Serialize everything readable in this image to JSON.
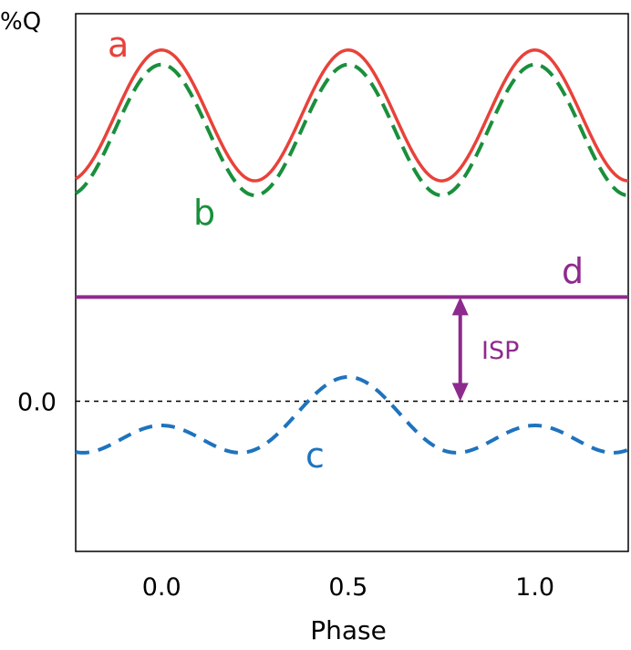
{
  "chart_data": {
    "type": "line",
    "title": "",
    "xlabel": "Phase",
    "ylabel": "%Q",
    "xlim": [
      -0.23,
      1.25
    ],
    "ylim": [
      -0.62,
      1.6
    ],
    "x_ticks": [
      0.0,
      0.5,
      1.0
    ],
    "x_tick_labels": [
      "0.0",
      "0.5",
      "1.0"
    ],
    "y_ticks": [
      0.0
    ],
    "y_tick_labels": [
      "0.0"
    ],
    "grid": false,
    "reference_line": {
      "y": 0.0,
      "style": "dashed",
      "color": "#000000"
    },
    "series": [
      {
        "name": "a",
        "color": "#e8423a",
        "style": "solid",
        "formula": "1.18 + 0.27*cos(4*pi*x)",
        "mean": 1.18,
        "amplitude": 0.27
      },
      {
        "name": "b",
        "color": "#1a8f3c",
        "style": "dashed",
        "formula": "1.12 + 0.27*cos(4*pi*x)",
        "mean": 1.12,
        "amplitude": 0.27
      },
      {
        "name": "c",
        "color": "#1e73be",
        "style": "dashed",
        "formula": "-0.10 + 0.10*cos(4*pi*x) - 0.10*cos(2*pi*x)",
        "mean": -0.1
      },
      {
        "name": "d",
        "color": "#8e2a8e",
        "style": "solid",
        "constant": 0.43
      }
    ],
    "annotations": [
      {
        "text": "ISP",
        "color": "#8e2a8e",
        "type": "double-arrow",
        "x": 0.8,
        "y_from": 0.0,
        "y_to": 0.43
      }
    ]
  }
}
